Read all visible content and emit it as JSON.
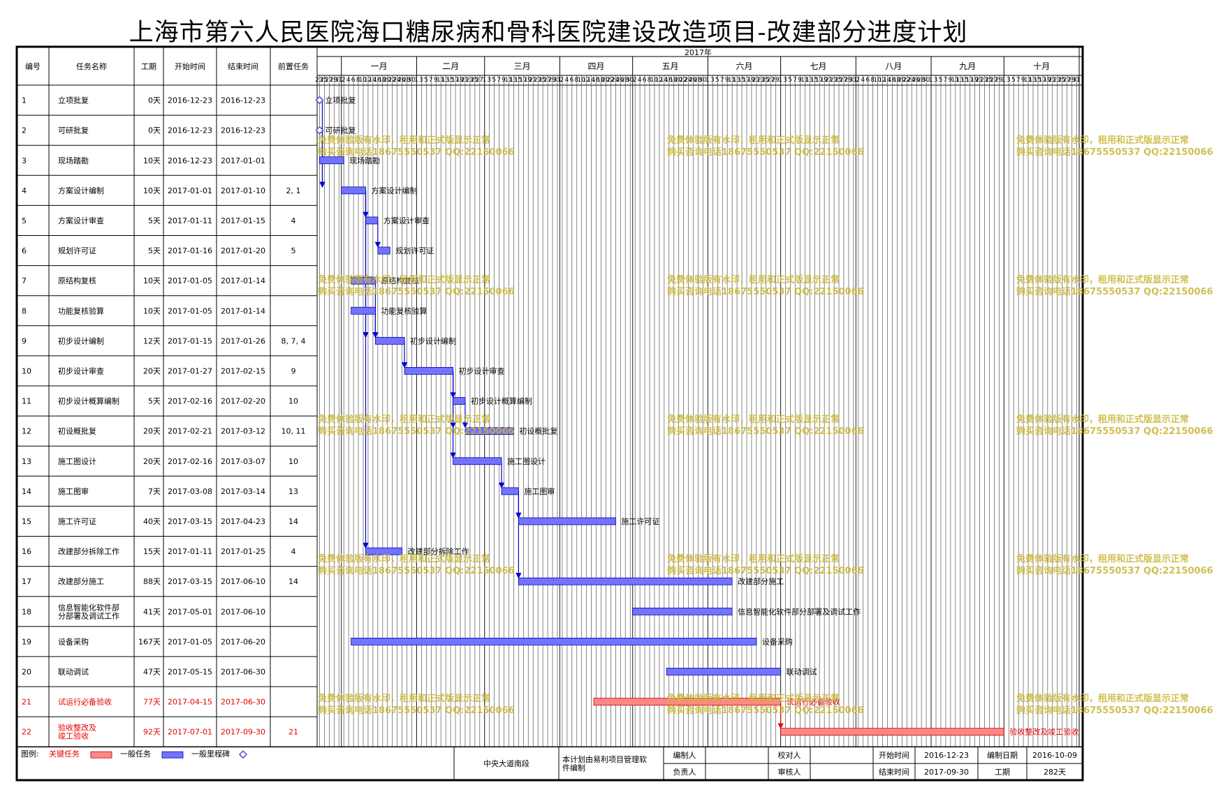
{
  "title": "上海市第六人民医院海口糖尿病和骨科医院建设改造项目-改建部分进度计划",
  "columns": [
    "编号",
    "任务名称",
    "工期",
    "开始时间",
    "结束时间",
    "前置任务"
  ],
  "year_label": "2017年",
  "months": [
    {
      "label": "一月",
      "start": "2017-01-01"
    },
    {
      "label": "二月",
      "start": "2017-02-01"
    },
    {
      "label": "三月",
      "start": "2017-03-01"
    },
    {
      "label": "四月",
      "start": "2017-04-01"
    },
    {
      "label": "五月",
      "start": "2017-05-01"
    },
    {
      "label": "六月",
      "start": "2017-06-01"
    },
    {
      "label": "七月",
      "start": "2017-07-01"
    },
    {
      "label": "八月",
      "start": "2017-08-01"
    },
    {
      "label": "九月",
      "start": "2017-09-01"
    },
    {
      "label": "十月",
      "start": "2017-10-01"
    }
  ],
  "timeline_start": "2016-12-22",
  "timeline_end": "2017-11-01",
  "colors": {
    "normal_bar": "#6464ff",
    "critical_bar": "#ff7878",
    "critical_text": "#e60000",
    "milestone": "#5050dc",
    "watermark": "#c8b432"
  },
  "chart_data": {
    "type": "gantt",
    "tasks": [
      {
        "id": "1",
        "name": "立项批复",
        "duration": "0天",
        "start": "2016-12-23",
        "end": "2016-12-23",
        "pred": "",
        "critical": false,
        "milestone": true
      },
      {
        "id": "2",
        "name": "可研批复",
        "duration": "0天",
        "start": "2016-12-23",
        "end": "2016-12-23",
        "pred": "",
        "critical": false,
        "milestone": true
      },
      {
        "id": "3",
        "name": "现场踏勘",
        "duration": "10天",
        "start": "2016-12-23",
        "end": "2017-01-01",
        "pred": "",
        "critical": false,
        "milestone": false
      },
      {
        "id": "4",
        "name": "方案设计编制",
        "duration": "10天",
        "start": "2017-01-01",
        "end": "2017-01-10",
        "pred": "2, 1",
        "critical": false,
        "milestone": false
      },
      {
        "id": "5",
        "name": "方案设计审查",
        "duration": "5天",
        "start": "2017-01-11",
        "end": "2017-01-15",
        "pred": "4",
        "critical": false,
        "milestone": false
      },
      {
        "id": "6",
        "name": "规划许可证",
        "duration": "5天",
        "start": "2017-01-16",
        "end": "2017-01-20",
        "pred": "5",
        "critical": false,
        "milestone": false
      },
      {
        "id": "7",
        "name": "原结构复核",
        "duration": "10天",
        "start": "2017-01-05",
        "end": "2017-01-14",
        "pred": "",
        "critical": false,
        "milestone": false
      },
      {
        "id": "8",
        "name": "功能复核验算",
        "duration": "10天",
        "start": "2017-01-05",
        "end": "2017-01-14",
        "pred": "",
        "critical": false,
        "milestone": false
      },
      {
        "id": "9",
        "name": "初步设计编制",
        "duration": "12天",
        "start": "2017-01-15",
        "end": "2017-01-26",
        "pred": "8, 7, 4",
        "critical": false,
        "milestone": false
      },
      {
        "id": "10",
        "name": "初步设计审查",
        "duration": "20天",
        "start": "2017-01-27",
        "end": "2017-02-15",
        "pred": "9",
        "critical": false,
        "milestone": false
      },
      {
        "id": "11",
        "name": "初步设计概算编制",
        "duration": "5天",
        "start": "2017-02-16",
        "end": "2017-02-20",
        "pred": "10",
        "critical": false,
        "milestone": false
      },
      {
        "id": "12",
        "name": "初设概批复",
        "duration": "20天",
        "start": "2017-02-21",
        "end": "2017-03-12",
        "pred": "10, 11",
        "critical": false,
        "milestone": false
      },
      {
        "id": "13",
        "name": "施工图设计",
        "duration": "20天",
        "start": "2017-02-16",
        "end": "2017-03-07",
        "pred": "10",
        "critical": false,
        "milestone": false
      },
      {
        "id": "14",
        "name": "施工图审",
        "duration": "7天",
        "start": "2017-03-08",
        "end": "2017-03-14",
        "pred": "13",
        "critical": false,
        "milestone": false
      },
      {
        "id": "15",
        "name": "施工许可证",
        "duration": "40天",
        "start": "2017-03-15",
        "end": "2017-04-23",
        "pred": "14",
        "critical": false,
        "milestone": false
      },
      {
        "id": "16",
        "name": "改建部分拆除工作",
        "duration": "15天",
        "start": "2017-01-11",
        "end": "2017-01-25",
        "pred": "4",
        "critical": false,
        "milestone": false
      },
      {
        "id": "17",
        "name": "改建部分施工",
        "duration": "88天",
        "start": "2017-03-15",
        "end": "2017-06-10",
        "pred": "14",
        "critical": false,
        "milestone": false
      },
      {
        "id": "18",
        "name": "信息智能化软件部分部署及调试工作",
        "duration": "41天",
        "start": "2017-05-01",
        "end": "2017-06-10",
        "pred": "",
        "critical": false,
        "milestone": false
      },
      {
        "id": "19",
        "name": "设备采购",
        "duration": "167天",
        "start": "2017-01-05",
        "end": "2017-06-20",
        "pred": "",
        "critical": false,
        "milestone": false
      },
      {
        "id": "20",
        "name": "联动调试",
        "duration": "47天",
        "start": "2017-05-15",
        "end": "2017-06-30",
        "pred": "",
        "critical": false,
        "milestone": false
      },
      {
        "id": "21",
        "name": "试运行必备验收",
        "duration": "77天",
        "start": "2017-04-15",
        "end": "2017-06-30",
        "pred": "",
        "critical": true,
        "milestone": false
      },
      {
        "id": "22",
        "name": "验收整改及竣工验收",
        "duration": "92天",
        "start": "2017-07-01",
        "end": "2017-09-30",
        "pred": "21",
        "critical": true,
        "milestone": false
      }
    ]
  },
  "legend": {
    "label": "图例:",
    "critical": "关键任务",
    "normal": "一般任务",
    "milestone": "一般里程碑"
  },
  "footer": {
    "project": "中央大道南段",
    "software_note": "本计划由易利项目管理软件编制",
    "compiler": "编制人",
    "checker": "校对人",
    "owner": "负责人",
    "reviewer": "审核人",
    "start_label": "开始时间",
    "start_value": "2016-12-23",
    "compile_date_label": "编制日期",
    "compile_date_value": "2016-10-09",
    "end_label": "结束时间",
    "end_value": "2017-09-30",
    "duration_label": "工期",
    "duration_value": "282天"
  },
  "watermark": {
    "line1": "免费体验版有水印，租用和正式版显示正常",
    "line2": "购买咨询电话18675550537 QQ:22150066"
  }
}
